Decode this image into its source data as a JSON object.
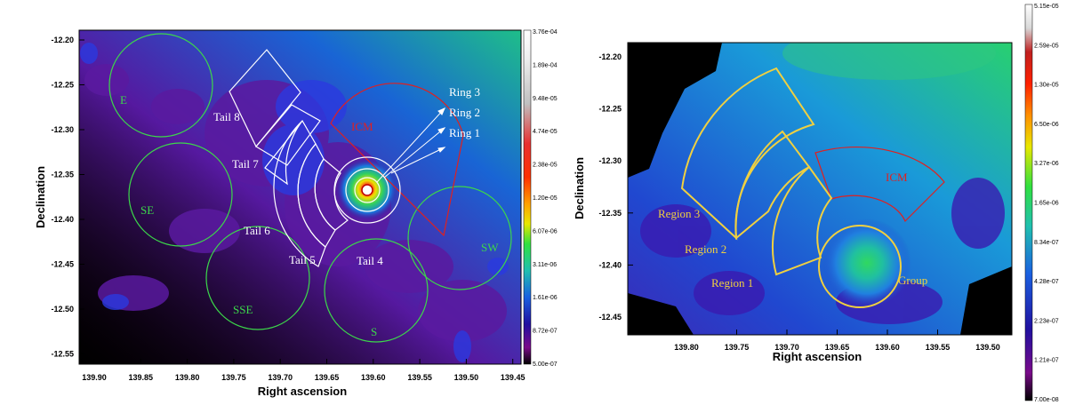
{
  "left_panel": {
    "xlabel": "Right ascension",
    "ylabel": "Declination",
    "x_ticks": [
      "139.90",
      "139.85",
      "139.80",
      "139.75",
      "139.70",
      "139.65",
      "139.60",
      "139.55",
      "139.50",
      "139.45"
    ],
    "y_ticks": [
      "-12.20",
      "-12.25",
      "-12.30",
      "-12.35",
      "-12.40",
      "-12.45",
      "-12.50",
      "-12.55"
    ],
    "colorbar_ticks": [
      "3.76e-04",
      "1.89e-04",
      "9.48e-05",
      "4.74e-05",
      "2.38e-05",
      "1.20e-05",
      "6.07e-06",
      "3.11e-06",
      "1.61e-06",
      "8.72e-07",
      "5.00e-07"
    ],
    "region_labels": {
      "e": "E",
      "se": "SE",
      "sse": "SSE",
      "s": "S",
      "sw": "SW",
      "icm": "ICM",
      "ring3": "Ring 3",
      "ring2": "Ring 2",
      "ring1": "Ring 1",
      "tail8": "Tail 8",
      "tail7": "Tail 7",
      "tail6": "Tail 6",
      "tail5": "Tail 5",
      "tail4": "Tail 4"
    }
  },
  "right_panel": {
    "xlabel": "Right ascension",
    "ylabel": "Declination",
    "x_ticks": [
      "139.80",
      "139.75",
      "139.70",
      "139.65",
      "139.60",
      "139.55",
      "139.50"
    ],
    "y_ticks": [
      "-12.20",
      "-12.25",
      "-12.30",
      "-12.35",
      "-12.40",
      "-12.45"
    ],
    "colorbar_ticks": [
      "5.15e-05",
      "2.59e-05",
      "1.30e-05",
      "6.50e-06",
      "3.27e-06",
      "1.65e-06",
      "8.34e-07",
      "4.28e-07",
      "2.23e-07",
      "1.21e-07",
      "7.00e-08"
    ],
    "region_labels": {
      "icm": "ICM",
      "region3": "Region 3",
      "region2": "Region 2",
      "region1": "Region 1",
      "group": "Group"
    }
  },
  "colors": {
    "ring_white": "#ffffff",
    "background_green": "#3cd84a",
    "icm_red": "#e02020",
    "region_yellow": "#f0d040"
  }
}
